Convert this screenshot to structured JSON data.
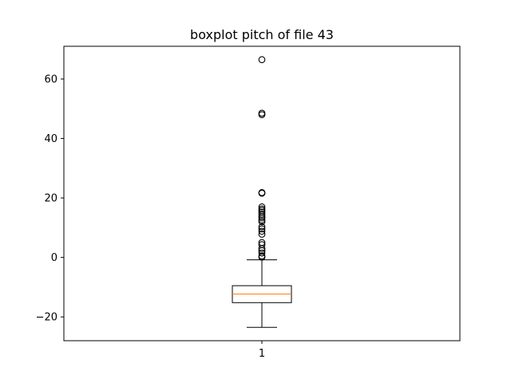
{
  "chart_data": {
    "type": "boxplot",
    "title": "boxplot pitch of file 43",
    "xlabel": "",
    "ylabel": "",
    "categories": [
      "1"
    ],
    "ylim": [
      -28,
      71
    ],
    "yticks": [
      -20,
      0,
      20,
      40,
      60
    ],
    "grid": false,
    "box": {
      "whisker_low": -23.5,
      "q1": -15.2,
      "median": -12.3,
      "q3": -9.5,
      "whisker_high": -0.8
    },
    "outliers": [
      66.5,
      48.5,
      48.0,
      21.8,
      21.6,
      17.0,
      16.3,
      15.8,
      15.2,
      14.5,
      13.8,
      13.3,
      12.6,
      12.0,
      10.3,
      9.6,
      8.8,
      7.8,
      5.0,
      4.3,
      3.0,
      2.3,
      1.5,
      0.5,
      0.1
    ],
    "colors": {
      "box": "#000000",
      "median": "#ff7f0e",
      "outlier": "#000000"
    }
  }
}
